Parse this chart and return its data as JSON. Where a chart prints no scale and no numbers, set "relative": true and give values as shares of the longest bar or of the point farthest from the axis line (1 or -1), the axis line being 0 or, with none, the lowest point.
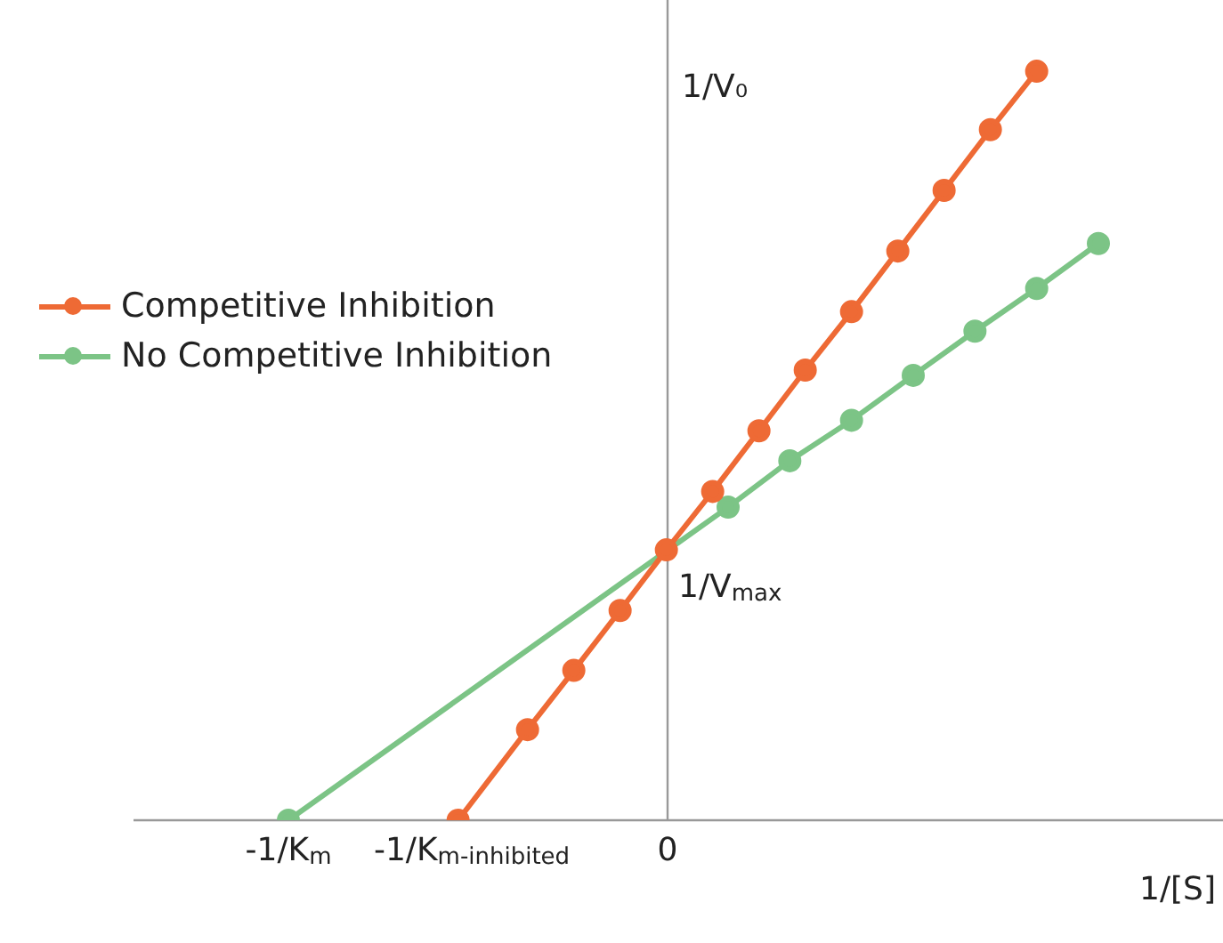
{
  "chart_data": {
    "type": "line",
    "relative": true,
    "xlabel": "1/[S]",
    "ylabel": "1/V₀",
    "annotations": [
      "-1/K$_{m}$",
      "-1/K$_{m-inhibited}$",
      "0",
      "1/V$_{max}$"
    ],
    "legend": "left",
    "marker": "circle",
    "line_style": "solid",
    "categories": [
      null,
      null,
      null,
      null,
      null,
      null,
      null,
      null,
      null,
      null,
      null,
      null,
      null,
      null,
      null,
      null,
      null,
      null,
      null,
      null,
      null,
      null,
      null,
      null,
      null,
      null,
      null,
      null,
      null,
      null,
      null,
      null,
      null,
      null,
      null,
      null,
      null,
      null,
      null,
      null,
      null,
      null,
      null,
      null,
      null,
      null,
      null,
      null,
      null,
      null,
      null,
      null,
      null,
      null,
      null,
      null,
      null,
      null,
      null,
      null,
      null,
      null,
      null,
      null,
      null,
      null,
      null,
      null,
      null,
      null,
      null,
      null,
      null,
      null,
      null,
      null,
      null,
      null,
      null,
      null,
      null,
      null,
      null,
      null,
      null,
      null,
      null,
      null,
      null,
      null,
      null,
      null,
      null,
      null,
      null,
      null,
      null,
      null,
      null,
      null,
      null,
      null,
      null,
      null,
      null,
      null
    ],
    "series": [
      {
        "name": "Competitive Inhibition",
        "color": "#ee6a35",
        "values": [
          null,
          null,
          null,
          null,
          null,
          null,
          null,
          null,
          null,
          null,
          null,
          null,
          null,
          null,
          null,
          null,
          null,
          null,
          null,
          null,
          null,
          null,
          0,
          null,
          null,
          null,
          null,
          null,
          null,
          null,
          null,
          0.121,
          null,
          null,
          null,
          null,
          null,
          0.2,
          null,
          null,
          null,
          null,
          null,
          0.28,
          null,
          null,
          null,
          null,
          null,
          0.361,
          null,
          null,
          null,
          null,
          null,
          0.439,
          null,
          null,
          null,
          null,
          null,
          0.52,
          null,
          null,
          null,
          null,
          null,
          0.601,
          null,
          null,
          null,
          null,
          null,
          0.679,
          null,
          null,
          null,
          null,
          null,
          0.76,
          null,
          null,
          null,
          null,
          null,
          0.841,
          null,
          null,
          null,
          null,
          null,
          0.922,
          null,
          null,
          null,
          null,
          null,
          1,
          null,
          null,
          null,
          null,
          null,
          null,
          null,
          null
        ]
      },
      {
        "name": "No Competitive Inhibition",
        "color": "#7cc486",
        "values": [
          0,
          null,
          null,
          null,
          null,
          null,
          null,
          null,
          null,
          null,
          null,
          null,
          null,
          null,
          null,
          null,
          null,
          null,
          null,
          null,
          null,
          null,
          null,
          null,
          null,
          null,
          null,
          null,
          null,
          null,
          null,
          null,
          null,
          null,
          null,
          null,
          null,
          null,
          null,
          null,
          null,
          null,
          null,
          null,
          null,
          null,
          null,
          null,
          null,
          null,
          null,
          null,
          null,
          null,
          null,
          null,
          null,
          0.418,
          null,
          null,
          null,
          null,
          null,
          null,
          null,
          0.48,
          null,
          null,
          null,
          null,
          null,
          null,
          null,
          0.534,
          null,
          null,
          null,
          null,
          null,
          null,
          null,
          0.594,
          null,
          null,
          null,
          null,
          null,
          null,
          null,
          0.653,
          null,
          null,
          null,
          null,
          null,
          null,
          null,
          0.71,
          null,
          null,
          null,
          null,
          null,
          null,
          null,
          0.77
        ]
      }
    ]
  }
}
